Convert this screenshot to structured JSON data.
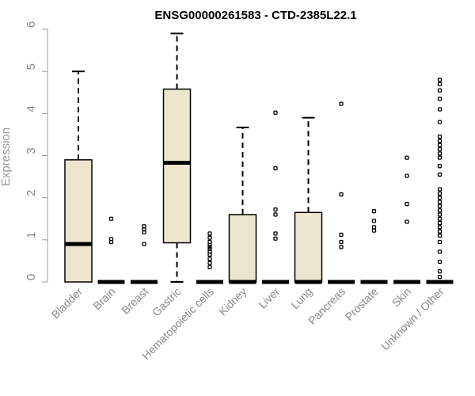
{
  "chart_data": {
    "type": "box",
    "title": "ENSG00000261583 - CTD-2385L22.1",
    "xlabel": "",
    "ylabel": "Expression",
    "ylim": [
      0,
      6
    ],
    "yticks": [
      0,
      1,
      2,
      3,
      4,
      5,
      6
    ],
    "colors": {
      "box_fill": "#ede6cf",
      "box_stroke": "#000000",
      "axis": "#999999",
      "tick_text": "#888888"
    },
    "groups": [
      {
        "label": "Bladder",
        "q1": 0.0,
        "median": 0.9,
        "q3": 2.9,
        "whisker_low": 0.0,
        "whisker_high": 5.0,
        "outliers": []
      },
      {
        "label": "Brain",
        "q1": 0.0,
        "median": 0.0,
        "q3": 0.0,
        "whisker_low": 0.0,
        "whisker_high": 0.0,
        "outliers": [
          0.95,
          1.02,
          1.5
        ]
      },
      {
        "label": "Breast",
        "q1": 0.0,
        "median": 0.0,
        "q3": 0.0,
        "whisker_low": 0.0,
        "whisker_high": 0.0,
        "outliers": [
          0.9,
          1.18,
          1.25,
          1.32
        ]
      },
      {
        "label": "Gastric",
        "q1": 0.93,
        "median": 2.83,
        "q3": 4.58,
        "whisker_low": 0.0,
        "whisker_high": 5.9,
        "outliers": []
      },
      {
        "label": "Hematopoietic cells",
        "q1": 0.0,
        "median": 0.0,
        "q3": 0.0,
        "whisker_low": 0.0,
        "whisker_high": 0.0,
        "outliers": [
          0.35,
          0.45,
          0.55,
          0.65,
          0.72,
          0.78,
          0.83,
          0.88,
          0.95,
          1.05,
          1.15
        ]
      },
      {
        "label": "Kidney",
        "q1": 0.0,
        "median": 0.0,
        "q3": 1.6,
        "whisker_low": 0.0,
        "whisker_high": 3.67,
        "outliers": []
      },
      {
        "label": "Liver",
        "q1": 0.0,
        "median": 0.0,
        "q3": 0.0,
        "whisker_low": 0.0,
        "whisker_high": 0.0,
        "outliers": [
          1.03,
          1.15,
          1.6,
          1.72,
          2.7,
          4.02
        ]
      },
      {
        "label": "Lung",
        "q1": 0.0,
        "median": 0.0,
        "q3": 1.65,
        "whisker_low": 0.0,
        "whisker_high": 3.9,
        "outliers": []
      },
      {
        "label": "Pancreas",
        "q1": 0.0,
        "median": 0.0,
        "q3": 0.0,
        "whisker_low": 0.0,
        "whisker_high": 0.0,
        "outliers": [
          0.83,
          0.95,
          1.12,
          2.08,
          4.23
        ]
      },
      {
        "label": "Prostate",
        "q1": 0.0,
        "median": 0.0,
        "q3": 0.0,
        "whisker_low": 0.0,
        "whisker_high": 0.0,
        "outliers": [
          1.22,
          1.3,
          1.45,
          1.68
        ]
      },
      {
        "label": "Skin",
        "q1": 0.0,
        "median": 0.0,
        "q3": 0.0,
        "whisker_low": 0.0,
        "whisker_high": 0.0,
        "outliers": [
          1.43,
          1.85,
          2.52,
          2.95
        ]
      },
      {
        "label": "Unknown / Other",
        "q1": 0.0,
        "median": 0.0,
        "q3": 0.0,
        "whisker_low": 0.0,
        "whisker_high": 0.0,
        "outliers": [
          0.12,
          0.25,
          0.48,
          0.72,
          0.95,
          1.1,
          1.2,
          1.3,
          1.4,
          1.5,
          1.6,
          1.7,
          1.8,
          1.9,
          2.0,
          2.1,
          2.2,
          2.55,
          2.75,
          2.95,
          3.05,
          3.15,
          3.25,
          3.35,
          3.45,
          3.8,
          4.1,
          4.35,
          4.55,
          4.7,
          4.8
        ]
      }
    ]
  }
}
